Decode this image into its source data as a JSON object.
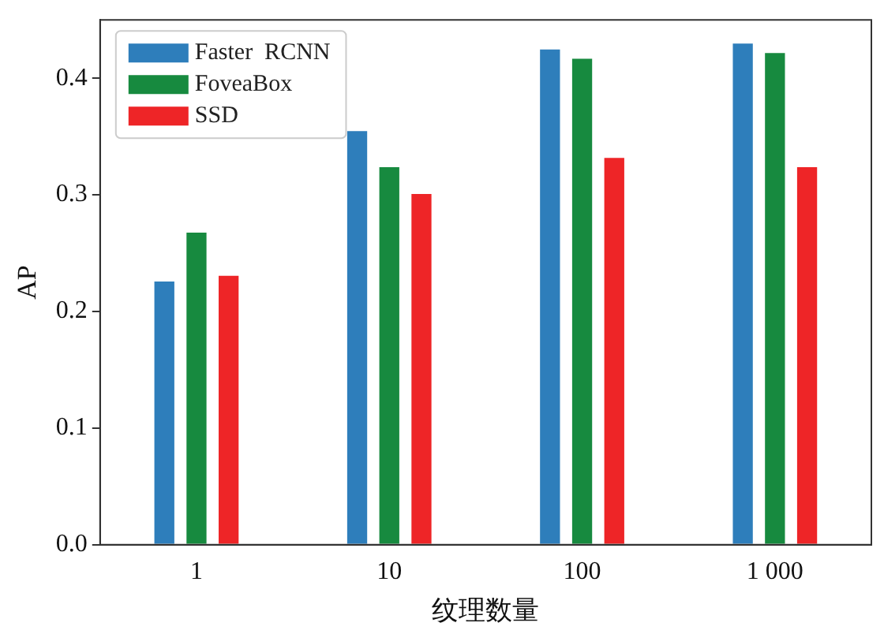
{
  "chart_data": {
    "type": "bar",
    "xlabel": "纹理数量",
    "ylabel": "AP",
    "categories": [
      "1",
      "10",
      "100",
      "1 000"
    ],
    "series": [
      {
        "name": "Faster  RCNN",
        "color": "#2e7ebb",
        "values": [
          0.227,
          0.356,
          0.426,
          0.431
        ]
      },
      {
        "name": "FoveaBox",
        "color": "#178a3f",
        "values": [
          0.269,
          0.325,
          0.418,
          0.423
        ]
      },
      {
        "name": "SSD",
        "color": "#ee2527",
        "values": [
          0.232,
          0.302,
          0.333,
          0.325
        ]
      }
    ],
    "ylim": [
      0,
      0.45
    ],
    "yticks": [
      {
        "value": 0,
        "label": "0.0"
      },
      {
        "value": 0.1,
        "label": "0.1"
      },
      {
        "value": 0.2,
        "label": "0.2"
      },
      {
        "value": 0.3,
        "label": "0.3"
      },
      {
        "value": 0.4,
        "label": "0.4"
      }
    ],
    "grid": false,
    "legend": "top left"
  }
}
